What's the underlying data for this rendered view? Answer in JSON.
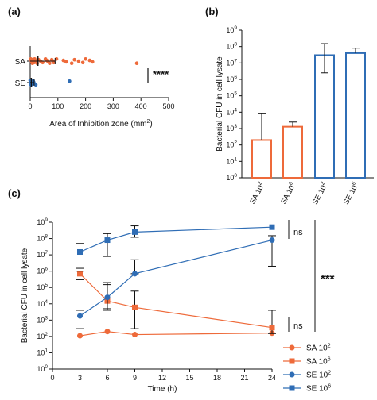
{
  "colors": {
    "sa": "#ee6a3a",
    "se": "#2f6db5",
    "axis": "#111111"
  },
  "chart_data": [
    {
      "id": "a",
      "panel_label": "(a)",
      "type": "scatter",
      "orientation": "horizontal",
      "xlabel": "Area of Inhibition zone (mm",
      "xlabel_sup": "2",
      "xlabel_end": ")",
      "xlim": [
        0,
        500
      ],
      "xticks": [
        0,
        100,
        200,
        300,
        400,
        500
      ],
      "categories": [
        "SA",
        "SE"
      ],
      "significance": "****",
      "series": [
        {
          "name": "SA",
          "color": "#ee6a3a",
          "values": [
            2,
            4,
            6,
            8,
            10,
            12,
            14,
            16,
            18,
            20,
            25,
            30,
            38,
            45,
            55,
            60,
            65,
            70,
            78,
            82,
            85,
            95,
            120,
            130,
            150,
            160,
            175,
            190,
            200,
            215,
            225,
            385
          ],
          "mean": 28,
          "err": [
            0,
            90
          ]
        },
        {
          "name": "SE",
          "color": "#2f6db5",
          "values": [
            0,
            1,
            2,
            3,
            5,
            6,
            8,
            10,
            12,
            14,
            20,
            142
          ],
          "mean": 4,
          "err": [
            0,
            14
          ]
        }
      ]
    },
    {
      "id": "b",
      "panel_label": "(b)",
      "type": "bar",
      "ylabel": "Bacterial CFU in cell lysate",
      "yscale": "log",
      "ylim_exp": [
        0,
        9
      ],
      "categories": [
        {
          "base": "SA 10",
          "sup": "2"
        },
        {
          "base": "SA 10",
          "sup": "6"
        },
        {
          "base": "SE 10",
          "sup": "2"
        },
        {
          "base": "SE 10",
          "sup": "6"
        }
      ],
      "values": [
        200,
        1300,
        30000000,
        40000000
      ],
      "err_high": [
        8000,
        2500,
        150000000,
        80000000
      ],
      "err_low": [
        200,
        1300,
        2500000,
        40000000
      ],
      "bar_colors": [
        "#ee6a3a",
        "#ee6a3a",
        "#2f6db5",
        "#2f6db5"
      ]
    },
    {
      "id": "c",
      "panel_label": "(c)",
      "type": "line",
      "ylabel": "Bacterial CFU in cell lysate",
      "xlabel": "Time (h)",
      "yscale": "log",
      "ylim_exp": [
        0,
        9
      ],
      "xlim": [
        0,
        24
      ],
      "xticks": [
        0,
        3,
        6,
        9,
        12,
        15,
        18,
        21,
        24
      ],
      "x": [
        3,
        6,
        9,
        24
      ],
      "significance_main": "***",
      "significance_top": "ns",
      "significance_bottom": "ns",
      "series": [
        {
          "name": {
            "base": "SA 10",
            "sup": "2"
          },
          "marker": "circle",
          "color": "#ee6a3a",
          "values": [
            110,
            200,
            130,
            160
          ],
          "err_low": [
            110,
            200,
            130,
            160
          ],
          "err_high": [
            110,
            200,
            130,
            160
          ]
        },
        {
          "name": {
            "base": "SA 10",
            "sup": "6"
          },
          "marker": "square",
          "color": "#ee6a3a",
          "values": [
            700000,
            15000,
            6000,
            350
          ],
          "err_low": [
            300000,
            4000,
            300,
            150
          ],
          "err_high": [
            1500000,
            200000,
            60000,
            4000
          ]
        },
        {
          "name": {
            "base": "SE 10",
            "sup": "2"
          },
          "marker": "circle",
          "color": "#2f6db5",
          "values": [
            1800,
            25000,
            700000,
            80000000
          ],
          "err_low": [
            300,
            5000,
            700000,
            2000000
          ],
          "err_high": [
            4000,
            150000,
            5000000,
            150000000
          ]
        },
        {
          "name": {
            "base": "SE 10",
            "sup": "6"
          },
          "marker": "square",
          "color": "#2f6db5",
          "values": [
            15000000,
            80000000,
            250000000,
            500000000
          ],
          "err_low": [
            1000000,
            8000000,
            120000000,
            500000000
          ],
          "err_high": [
            50000000,
            200000000,
            600000000,
            500000000
          ]
        }
      ]
    }
  ]
}
